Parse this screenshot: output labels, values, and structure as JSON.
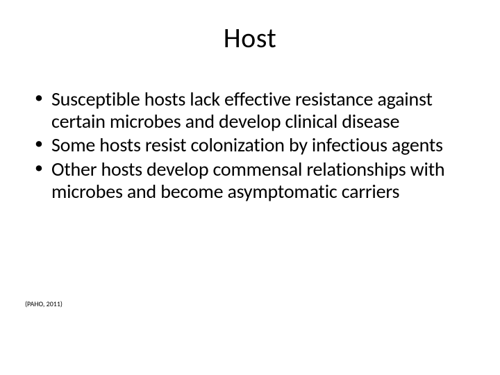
{
  "slide": {
    "title": "Host",
    "bullets": [
      "Susceptible hosts lack effective resistance against certain microbes and develop clinical disease",
      "Some hosts resist colonization by infectious agents",
      "Other hosts develop commensal relationships with microbes and become asymptomatic carriers"
    ],
    "citation": "(PAHO, 2011)"
  },
  "style": {
    "background_color": "#ffffff",
    "text_color": "#000000",
    "title_fontsize": 40,
    "title_weight": 400,
    "body_fontsize": 28,
    "citation_fontsize": 10,
    "font_family": "Calibri"
  }
}
